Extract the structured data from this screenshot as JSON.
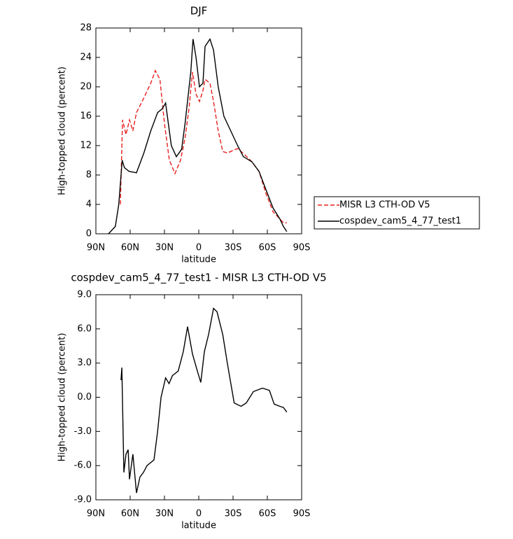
{
  "chart_data": [
    {
      "type": "line",
      "title": "DJF",
      "x_label": "latitude",
      "y_label": "High-topped cloud (percent)",
      "xlim": [
        90,
        -90
      ],
      "xticks": [
        {
          "value": 90,
          "label": "90N"
        },
        {
          "value": 60,
          "label": "60N"
        },
        {
          "value": 30,
          "label": "30N"
        },
        0,
        {
          "value": -30,
          "label": "30S"
        },
        {
          "value": -60,
          "label": "60S"
        },
        {
          "value": -90,
          "label": "90S"
        }
      ],
      "ylim": [
        0,
        28
      ],
      "yticks": [
        0,
        4,
        8,
        12,
        16,
        20,
        24,
        28
      ],
      "legend": "right",
      "series": [
        {
          "name": "MISR L3 CTH-OD V5",
          "color": "#e8201e",
          "line_style": "dashed",
          "x": [
            68.6,
            66.7,
            63.7,
            60.6,
            57.6,
            54.5,
            48,
            42,
            38,
            34,
            30,
            25.7,
            20.8,
            16,
            12,
            8.6,
            5.5,
            2.4,
            -0.6,
            -3.7,
            -5.5,
            -9.8,
            -12.9,
            -17,
            -21,
            -25,
            -34,
            -40,
            -46.5,
            -52.7,
            -58.8,
            -65,
            -71,
            -74,
            -77
          ],
          "values": [
            4,
            15.5,
            13.5,
            15.5,
            14,
            16.5,
            18.5,
            20.5,
            22.2,
            21,
            15,
            10,
            8.2,
            10,
            13,
            17,
            22,
            19,
            18,
            19.5,
            21,
            20.5,
            18,
            14,
            11.2,
            11,
            11.6,
            10.8,
            9.8,
            8.5,
            5.5,
            3,
            2,
            1.5,
            1.5
          ]
        },
        {
          "name": "cospdev_cam5_4_77_test1",
          "color": "#000000",
          "line_style": "solid",
          "x": [
            79,
            73,
            70,
            67,
            65,
            61,
            54.5,
            48,
            42,
            36,
            32,
            29,
            24,
            19.6,
            15,
            12,
            7,
            5,
            2.4,
            -0.6,
            -3.7,
            -5.5,
            -9.8,
            -12.9,
            -17,
            -22,
            -28,
            -34,
            -39,
            -46.5,
            -52.7,
            -58.8,
            -65,
            -71,
            -74,
            -77
          ],
          "values": [
            0,
            1,
            4,
            10,
            9,
            8.5,
            8.3,
            11,
            14,
            16.5,
            17,
            17.8,
            12,
            10.5,
            11.5,
            15,
            22,
            26.5,
            24,
            20,
            20.5,
            25.5,
            26.5,
            25,
            20,
            16,
            14,
            12,
            10.5,
            9.8,
            8.5,
            6,
            3.5,
            2,
            1,
            0.3
          ]
        }
      ]
    },
    {
      "type": "line",
      "title": "cospdev_cam5_4_77_test1 - MISR L3 CTH-OD V5",
      "x_label": "latitude",
      "y_label": "High-topped cloud (percent)",
      "xlim": [
        90,
        -90
      ],
      "xticks": [
        {
          "value": 90,
          "label": "90N"
        },
        {
          "value": 60,
          "label": "60N"
        },
        {
          "value": 30,
          "label": "30N"
        },
        0,
        {
          "value": -30,
          "label": "30S"
        },
        {
          "value": -60,
          "label": "60S"
        },
        {
          "value": -90,
          "label": "90S"
        }
      ],
      "ylim": [
        -9,
        9
      ],
      "yticks": [
        {
          "value": -9,
          "label": "-9.0"
        },
        {
          "value": -6,
          "label": "-6.0"
        },
        {
          "value": -3,
          "label": "-3.0"
        },
        {
          "value": 0,
          "label": "0.0"
        },
        {
          "value": 3,
          "label": "3.0"
        },
        {
          "value": 6,
          "label": "6.0"
        },
        {
          "value": 9,
          "label": "9.0"
        }
      ],
      "series": [
        {
          "color": "#000000",
          "line_style": "solid",
          "x": [
            68,
            67.3,
            65.5,
            63.7,
            61.8,
            60.6,
            57.6,
            54.5,
            51.4,
            48.4,
            45.3,
            39.2,
            36,
            33,
            29,
            26,
            23,
            18,
            13.5,
            9.8,
            5.5,
            1.2,
            -1.8,
            -4.9,
            -8.6,
            -12.9,
            -16,
            -21,
            -25,
            -31,
            -37,
            -41.6,
            -47.8,
            -55.7,
            -61.8,
            -66,
            -71,
            -74,
            -77
          ],
          "values": [
            1.5,
            2.6,
            -6.6,
            -5,
            -4.6,
            -7.2,
            -5,
            -8.4,
            -7,
            -6.6,
            -6,
            -5.5,
            -3,
            0,
            1.7,
            1.2,
            1.9,
            2.3,
            4,
            6.2,
            3.8,
            2.3,
            1.3,
            4,
            5.5,
            7.8,
            7.5,
            5.5,
            3,
            -0.5,
            -0.8,
            -0.5,
            0.5,
            0.8,
            0.6,
            -0.6,
            -0.8,
            -0.9,
            -1.3
          ]
        }
      ]
    }
  ]
}
